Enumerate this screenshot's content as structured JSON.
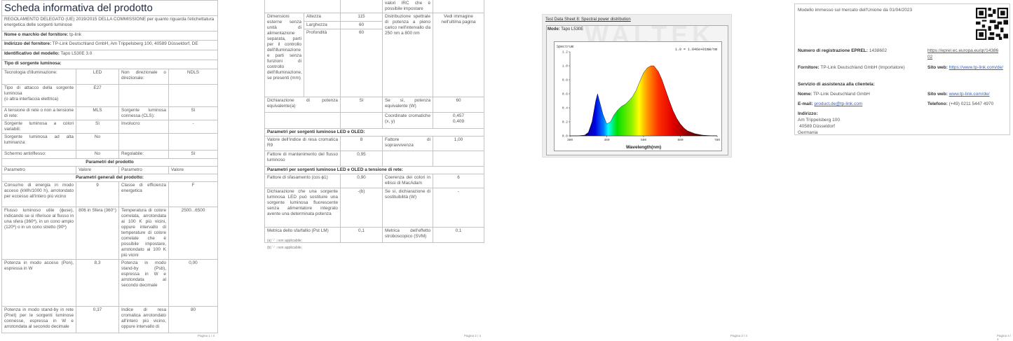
{
  "page1": {
    "title": "Scheda informativa del prodotto",
    "regulation": "REGOLAMENTO DELEGATO (UE) 2019/2015 DELLA COMMISSIONE per quanto riguarda l'etichettatura energetica delle sorgenti luminose",
    "supplier_label": "Nome o marchio del fornitore:",
    "supplier": "tp-link",
    "address_label": "Indirizzo del fornitore:",
    "address": "TP-Link Deutschland GmbH, Am Trippelsberg 100, 40589 Düsseldorf, DE",
    "model_label": "Identificativo del modello:",
    "model": "Tapo L530E 3.0",
    "type_heading": "Tipo di sorgente luminosa:",
    "rows": [
      [
        "Tecnologia d'illuminazione:",
        "LED",
        "Non direzionale o direzionale:",
        "NDLS"
      ],
      [
        "Tipo di attacco della sorgente luminosa",
        "E27",
        "",
        ""
      ],
      [
        "A tensione di rete o non a tensione di rete:",
        "MLS",
        "Sorgente luminosa connessa (CLS):",
        "Sì"
      ],
      [
        "Sorgente luminosa a colori variabili:",
        "Sì",
        "Involucro:",
        "-"
      ],
      [
        "Sorgente luminosa ad alta luminanza:",
        "No",
        "",
        ""
      ],
      [
        "Schermo antiriflesso:",
        "No",
        "Regolabile:",
        "Sì"
      ]
    ],
    "attach_note": "(o altra interfaccia elettrica)",
    "params_heading": "Parametri del prodotto",
    "columns": [
      "Parametro",
      "Valore",
      "Parametro",
      "Valore"
    ],
    "general_heading": "Parametri generali del prodotto:",
    "general": [
      [
        "Consumo di energia in modo acceso (kWh/1000 h), arrotondato per eccesso all'intero più vicino",
        "9",
        "Classe di efficienza energetica",
        "F"
      ],
      [
        "Flusso luminoso utile (ϕuse), indicando se si riferisce al flusso in una sfera (360º), in un cono ampio (120º) o in un cono stretto (90º)",
        "806 in Sfera (360°)",
        "Temperatura di colore correlata, arrotondata ai 100 K più vicini, oppure intervallo di temperature di colore correlate che è possibile impostare, arrotondato ai 100 K più vicini",
        "2500...6500"
      ],
      [
        "Potenza in modo acceso (Pon), espressa in W",
        "8,3",
        "Potenza in modo stand-by (Psb), espressa in W e arrotondata al secondo decimale",
        "0,00"
      ],
      [
        "Potenza in modo stand-by in rete (Pnet) per le sorgenti luminose connesse, espressa in W e arrotondata al secondo decimale",
        "0,37",
        "Indice di resa cromatica arrotondato all'intero più vicino, oppure intervallo di",
        "80"
      ]
    ],
    "footer": "Pagina 1 / 4"
  },
  "page2": {
    "top_cont": "valori IRC che è possibile impostare",
    "dims_label": "Dimensioni esterne senza unità di alimentazione separata, parti per il controllo dell'illuminazione e parti senza funzioni di controllo dell'illuminazione, se presenti (mm)",
    "dims": [
      [
        "Altezza",
        "115"
      ],
      [
        "Larghezza",
        "60"
      ],
      [
        "Profondità",
        "60"
      ]
    ],
    "spd_label": "Distribuzione spettrale di potenza a pieno carico nell'intervallo da 250 nm a 800 nm",
    "spd_value": "Vedi immagine nell'ultima pagina",
    "equiv": [
      "Dichiarazione di potenza equivalente(a)",
      "Sì",
      "Se sì, potenza equivalente (W)",
      "60"
    ],
    "chroma_label": "Coordinate cromatiche (x, y)",
    "chroma_x": "0,457",
    "chroma_y": "0,409",
    "led_heading": "Parametri per sorgenti luminose LED e OLED:",
    "led": [
      [
        "Valore dell'indice di resa cromatica R9",
        "8",
        "Fattore di sopravvivenza",
        "1,00"
      ],
      [
        "Fattore di mantenimento del flusso luminoso",
        "0,95",
        "",
        ""
      ]
    ],
    "mains_heading": "Parametri per sorgenti luminose LED e OLED a tensione di rete:",
    "mains": [
      [
        "Fattore di sfasamento (cos ϕ1)",
        "0,90",
        "Coerenza dei colori in ellissi di MacAdam",
        "6"
      ],
      [
        "Dichiarazione che una sorgente luminosa LED può sostituire una sorgente luminosa fluorescente senza alimentatore integrato avente una determinata potenza",
        "-(b)",
        "Se sì, dichiarazione di sostituibilità (W)",
        "-"
      ],
      [
        "Metrica dello sfarfallio (Pst LM)",
        "0,1",
        "Metrica dell'effetto stroboscopico (SVM)",
        "0,1"
      ]
    ],
    "footnotes": [
      "(a) '-' : non applicabile;",
      "(b) '-' : non applicabile;"
    ],
    "footer": "Pagina 2 / 4"
  },
  "page3": {
    "sheet_title": "Test Data Sheet 8: Spectral power distribution",
    "mode_label": "Mode:",
    "mode": "Tapo L530E",
    "watermark": "WALTEK",
    "footer": "Pagina 3 / 4"
  },
  "chart_data": {
    "type": "area",
    "ylabel": "Spectrum",
    "xlabel": "Wavelength(nm)",
    "annotation": "1.0 = 1.046e+01mW/nm",
    "xlim": [
      380,
      780
    ],
    "ylim": [
      0,
      1.2
    ],
    "xticks": [
      "380",
      "480",
      "580",
      "680",
      "780"
    ],
    "yticks": [
      "0.0",
      "0.2",
      "0.4",
      "0.6",
      "0.8",
      "1.0",
      "1.2"
    ],
    "x": [
      380,
      400,
      420,
      430,
      440,
      450,
      455,
      460,
      470,
      480,
      490,
      500,
      510,
      520,
      530,
      540,
      550,
      560,
      570,
      580,
      590,
      600,
      608,
      620,
      630,
      640,
      650,
      660,
      670,
      680,
      690,
      700,
      720,
      740,
      760,
      780
    ],
    "y": [
      0,
      0,
      0.01,
      0.05,
      0.2,
      0.5,
      0.6,
      0.5,
      0.3,
      0.17,
      0.2,
      0.3,
      0.37,
      0.42,
      0.45,
      0.5,
      0.56,
      0.65,
      0.78,
      0.9,
      0.97,
      1.0,
      1.0,
      0.92,
      0.8,
      0.65,
      0.5,
      0.36,
      0.25,
      0.17,
      0.11,
      0.07,
      0.03,
      0.01,
      0.003,
      0
    ],
    "grid": false
  },
  "page4": {
    "market": "Modello immesso sul mercato dell'Unione da 01/04/2023",
    "eprel_label": "Numero di registrazione EPREL:",
    "eprel": "1438602",
    "eprel_link": "https://eprel.ec.europa.eu/qr/1438602",
    "supplier_label": "Fornitore:",
    "supplier": "TP-Link Deutschland GmbH (Importatore)",
    "web_label": "Sito web:",
    "web": "https://www.tp-link.com/de/",
    "service_heading": "Servizio di assistenza alla clientela:",
    "name_label": "Nome:",
    "name": "TP-Link Deutschland GmbH",
    "web2_label": "Sito web:",
    "web2": "www.tp-link.com/de/",
    "email_label": "E-mail:",
    "email": "product.de@tp-link.com",
    "phone_label": "Telefono:",
    "phone": "(+49) 0211 5447 4970",
    "addr_label": "Indirizzo:",
    "addr1": "Am Trippelsberg 100",
    "addr2": "40589 Düsseldorf",
    "addr3": "Germania",
    "footer": "Pagina 4 / 4"
  }
}
